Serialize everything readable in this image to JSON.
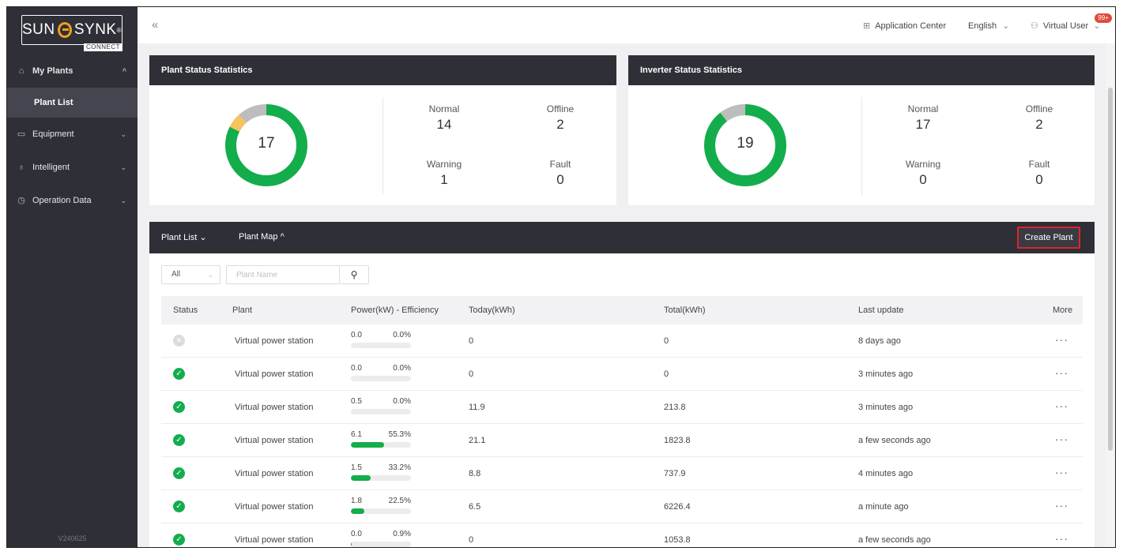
{
  "logo": {
    "left": "SUN",
    "right": "SYNK",
    "reg": "®",
    "sub": "CONNECT"
  },
  "sidebar": {
    "items": [
      {
        "label": "My Plants",
        "chev": "^"
      },
      {
        "label": "Plant List"
      },
      {
        "label": "Equipment",
        "chev": "⌄"
      },
      {
        "label": "Intelligent",
        "chev": "⌄"
      },
      {
        "label": "Operation Data",
        "chev": "⌄"
      }
    ],
    "version": "V240625"
  },
  "header": {
    "collapse": "«",
    "app_center": "Application Center",
    "language": "English",
    "user": "Virtual User",
    "badge": "99+"
  },
  "plant_stats": {
    "title": "Plant Status Statistics",
    "total": "17",
    "normal_label": "Normal",
    "normal": "14",
    "offline_label": "Offline",
    "offline": "2",
    "warning_label": "Warning",
    "warning": "1",
    "fault_label": "Fault",
    "fault": "0"
  },
  "inverter_stats": {
    "title": "Inverter Status Statistics",
    "total": "19",
    "normal_label": "Normal",
    "normal": "17",
    "offline_label": "Offline",
    "offline": "2",
    "warning_label": "Warning",
    "warning": "0",
    "fault_label": "Fault",
    "fault": "0"
  },
  "colors": {
    "normal": "#13ad4c",
    "warning": "#f7c35c",
    "offline": "#bdbdbd",
    "dark": "#2f2f38"
  },
  "list": {
    "tab_list": "Plant List",
    "tab_map": "Plant Map",
    "create": "Create Plant",
    "filter_value": "All",
    "search_placeholder": "Plant Name",
    "columns": [
      "Status",
      "Plant",
      "Power(kW) - Efficiency",
      "Today(kWh)",
      "Total(kWh)",
      "Last update",
      "More"
    ],
    "rows": [
      {
        "status": "offline",
        "plant": "Virtual power station",
        "power": "0.0",
        "eff": "0.0%",
        "eff_value": 0.0,
        "today": "0",
        "total": "0",
        "updated": "8 days ago",
        "more": "···"
      },
      {
        "status": "ok",
        "plant": "Virtual power station",
        "power": "0.0",
        "eff": "0.0%",
        "eff_value": 0.0,
        "today": "0",
        "total": "0",
        "updated": "3 minutes ago",
        "more": "···"
      },
      {
        "status": "ok",
        "plant": "Virtual power station",
        "power": "0.5",
        "eff": "0.0%",
        "eff_value": 0.0,
        "today": "11.9",
        "total": "213.8",
        "updated": "3 minutes ago",
        "more": "···"
      },
      {
        "status": "ok",
        "plant": "Virtual power station",
        "power": "6.1",
        "eff": "55.3%",
        "eff_value": 55.3,
        "today": "21.1",
        "total": "1823.8",
        "updated": "a few seconds ago",
        "more": "···"
      },
      {
        "status": "ok",
        "plant": "Virtual power station",
        "power": "1.5",
        "eff": "33.2%",
        "eff_value": 33.2,
        "today": "8.8",
        "total": "737.9",
        "updated": "4 minutes ago",
        "more": "···"
      },
      {
        "status": "ok",
        "plant": "Virtual power station",
        "power": "1.8",
        "eff": "22.5%",
        "eff_value": 22.5,
        "today": "6.5",
        "total": "6226.4",
        "updated": "a minute ago",
        "more": "···"
      },
      {
        "status": "ok",
        "plant": "Virtual power station",
        "power": "0.0",
        "eff": "0.9%",
        "eff_value": 0.9,
        "today": "0",
        "total": "1053.8",
        "updated": "a few seconds ago",
        "more": "···"
      }
    ]
  }
}
